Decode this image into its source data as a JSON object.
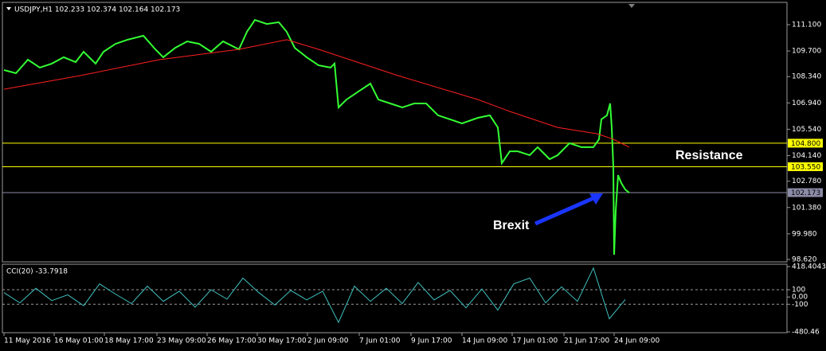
{
  "chart_data": [
    {
      "type": "line",
      "title": "USDJPY,H1 102.233 102.374 102.164 102.173",
      "xlim": [
        0,
        988
      ],
      "ylim": [
        98.535,
        112.2
      ],
      "yticks": [
        {
          "value": 111.1,
          "label": "111.100"
        },
        {
          "value": 109.7,
          "label": "109.700"
        },
        {
          "value": 108.34,
          "label": "108.340"
        },
        {
          "value": 106.94,
          "label": "106.940"
        },
        {
          "value": 105.54,
          "label": "105.540"
        },
        {
          "value": 104.14,
          "label": "104.140"
        },
        {
          "value": 102.78,
          "label": "102.780"
        },
        {
          "value": 101.38,
          "label": "101.380"
        },
        {
          "value": 99.98,
          "label": "99.980"
        },
        {
          "value": 98.62,
          "label": "98.620"
        }
      ],
      "hlines": [
        {
          "value": 104.8,
          "label": "104.800",
          "color": "#ffff00"
        },
        {
          "value": 103.55,
          "label": "103.550",
          "color": "#ffff00"
        },
        {
          "value": 102.173,
          "label": "102.173",
          "color": "#8c8ca8"
        }
      ],
      "annotations": [
        {
          "text": "Resistance"
        },
        {
          "text": "Brexit"
        }
      ],
      "series": [
        {
          "color": "#33ff33",
          "x": [
            5,
            20,
            35,
            50,
            65,
            80,
            95,
            105,
            120,
            130,
            145,
            160,
            180,
            195,
            205,
            220,
            235,
            250,
            265,
            280,
            300,
            310,
            320,
            335,
            350,
            360,
            370,
            385,
            400,
            415,
            420,
            425,
            435,
            450,
            465,
            475,
            490,
            505,
            520,
            535,
            550,
            565,
            580,
            600,
            615,
            625,
            630,
            640,
            650,
            665,
            675,
            690,
            700,
            715,
            730,
            745,
            752,
            755,
            762,
            766,
            768,
            770,
            771,
            773,
            776,
            780,
            785,
            790
          ],
          "values": [
            108.69,
            108.52,
            109.24,
            108.82,
            109.03,
            109.37,
            109.11,
            109.66,
            109.03,
            109.66,
            110.08,
            110.3,
            110.51,
            109.79,
            109.37,
            109.87,
            110.21,
            110.08,
            109.66,
            110.21,
            109.79,
            110.72,
            111.35,
            111.14,
            111.23,
            110.72,
            109.87,
            109.37,
            108.94,
            108.82,
            109.03,
            106.7,
            107.12,
            107.55,
            107.97,
            107.12,
            106.91,
            106.7,
            106.91,
            106.91,
            106.28,
            106.07,
            105.85,
            106.15,
            106.28,
            105.64,
            103.74,
            104.37,
            104.37,
            104.16,
            104.59,
            103.95,
            104.16,
            104.8,
            104.59,
            104.59,
            105.01,
            106.07,
            106.28,
            106.91,
            105.64,
            103.53,
            98.87,
            101.2,
            103.1,
            102.68,
            102.34,
            102.17
          ]
        },
        {
          "color": "#ff2020",
          "x": [
            5,
            100,
            200,
            300,
            360,
            400,
            500,
            600,
            640,
            700,
            750,
            770,
            790
          ],
          "values": [
            107.67,
            108.39,
            109.24,
            109.79,
            110.3,
            109.79,
            108.39,
            107.12,
            106.49,
            105.64,
            105.3,
            105.01,
            104.59
          ]
        }
      ]
    },
    {
      "type": "line",
      "title": "CCI(20) -33.7918",
      "xlim": [
        0,
        988
      ],
      "ylim": [
        -480.46,
        440
      ],
      "yticks": [
        418.4043,
        100,
        {
          "value": 0,
          "label": "0.00"
        },
        -100,
        -480.46
      ],
      "levels": [
        100,
        -100
      ],
      "xticks": [
        {
          "value": 5,
          "label": "11 May 2016"
        },
        {
          "value": 68,
          "label": "16 May 01:00"
        },
        {
          "value": 131,
          "label": "18 May 17:00"
        },
        {
          "value": 197,
          "label": "23 May 09:00"
        },
        {
          "value": 260,
          "label": "26 May 17:00"
        },
        {
          "value": 323,
          "label": "30 May 17:00"
        },
        {
          "value": 386,
          "label": "2 Jun 09:00"
        },
        {
          "value": 451,
          "label": "7 Jun 01:00"
        },
        {
          "value": 516,
          "label": "9 Jun 17:00"
        },
        {
          "value": 580,
          "label": "14 Jun 09:00"
        },
        {
          "value": 643,
          "label": "17 Jun 01:00"
        },
        {
          "value": 708,
          "label": "21 Jun 17:00"
        },
        {
          "value": 771,
          "label": "24 Jun 09:00"
        }
      ],
      "series": [
        {
          "color": "#40c0c0",
          "x": [
            5,
            25,
            45,
            65,
            85,
            105,
            125,
            145,
            165,
            185,
            205,
            225,
            245,
            265,
            285,
            305,
            325,
            345,
            365,
            385,
            405,
            425,
            445,
            465,
            485,
            505,
            525,
            545,
            565,
            585,
            605,
            625,
            645,
            665,
            685,
            705,
            725,
            745,
            765,
            785
          ],
          "values": [
            60,
            -80,
            120,
            -50,
            30,
            -120,
            180,
            40,
            -90,
            150,
            -60,
            80,
            -140,
            100,
            -30,
            260,
            60,
            -110,
            90,
            -40,
            80,
            -350,
            150,
            -60,
            120,
            -90,
            200,
            -40,
            90,
            -150,
            110,
            -180,
            180,
            260,
            -80,
            140,
            -60,
            400,
            -300,
            -34
          ]
        }
      ]
    }
  ]
}
